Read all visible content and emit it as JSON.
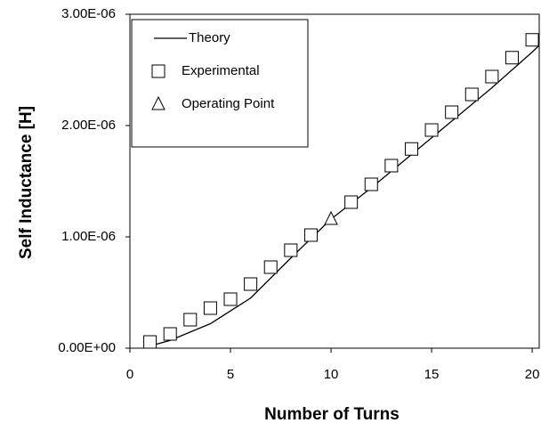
{
  "chart_data": {
    "type": "line",
    "xlabel": "Number of Turns",
    "ylabel": "Self Inductance [H]",
    "xlim": [
      0,
      20.35
    ],
    "xticks": [
      0,
      5,
      10,
      15,
      20
    ],
    "ylim": [
      0,
      3e-06
    ],
    "yticks": [
      {
        "value": 0,
        "label": "0.00E+00"
      },
      {
        "value": 1e-06,
        "label": "1.00E-06"
      },
      {
        "value": 2e-06,
        "label": "2.00E-06"
      },
      {
        "value": 3e-06,
        "label": "3.00E-06"
      }
    ],
    "legend": "upper left",
    "series": [
      {
        "name": "Theory",
        "style": "line",
        "color": "#000000",
        "x": [
          1,
          2,
          4,
          6,
          8,
          10,
          12,
          14,
          16,
          18,
          20,
          20.35
        ],
        "values": [
          2e-08,
          7e-08,
          2.2e-07,
          4.5e-07,
          8.1e-07,
          1.16e-06,
          1.44e-06,
          1.74e-06,
          2.04e-06,
          2.34e-06,
          2.66e-06,
          2.72e-06
        ]
      },
      {
        "name": "Experimental",
        "style": "square",
        "color": "#000000",
        "x": [
          1,
          2,
          3,
          4,
          5,
          6,
          7,
          8,
          9,
          11,
          12,
          13,
          14,
          15,
          16,
          17,
          18,
          19,
          20
        ],
        "values": [
          5.6e-08,
          1.28e-07,
          2.56e-07,
          3.6e-07,
          4.4e-07,
          5.76e-07,
          7.28e-07,
          8.8e-07,
          1.016e-06,
          1.312e-06,
          1.472e-06,
          1.64e-06,
          1.79e-06,
          1.96e-06,
          2.12e-06,
          2.28e-06,
          2.44e-06,
          2.61e-06,
          2.77e-06
        ]
      },
      {
        "name": "Operating Point",
        "style": "triangle",
        "color": "#000000",
        "x": [
          10
        ],
        "values": [
          1.16e-06
        ]
      }
    ]
  }
}
